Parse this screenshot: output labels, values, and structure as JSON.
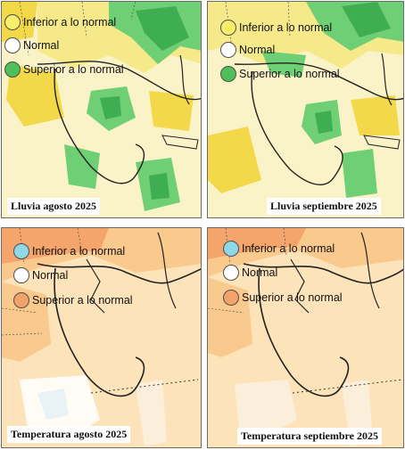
{
  "panels": [
    {
      "id": "lluvia-agosto",
      "caption": "Lluvia agosto 2025",
      "legend": [
        {
          "label": "Inferior a lo normal",
          "color": "#f7ef6a"
        },
        {
          "label": "Normal",
          "color": "#ffffff"
        },
        {
          "label": "Superior a lo normal",
          "color": "#4fbf5a"
        }
      ]
    },
    {
      "id": "lluvia-septiembre",
      "caption": "Lluvia septiembre 2025",
      "legend": [
        {
          "label": "Inferior a lo normal",
          "color": "#f7ef6a"
        },
        {
          "label": "Normal",
          "color": "#ffffff"
        },
        {
          "label": "Superior a lo normal",
          "color": "#4fbf5a"
        }
      ]
    },
    {
      "id": "temperatura-agosto",
      "caption": "Temperatura agosto 2025",
      "legend": [
        {
          "label": "Inferior a lo normal",
          "color": "#8fd8e8"
        },
        {
          "label": "Normal",
          "color": "#ffffff"
        },
        {
          "label": "Superior a lo normal",
          "color": "#f2a36a"
        }
      ]
    },
    {
      "id": "temperatura-septiembre",
      "caption": "Temperatura septiembre 2025",
      "legend": [
        {
          "label": "Inferior a lo normal",
          "color": "#8fd8e8"
        },
        {
          "label": "Normal",
          "color": "#ffffff"
        },
        {
          "label": "Superior a lo normal",
          "color": "#f2a36a"
        }
      ]
    }
  ],
  "colors": {
    "rain_base": "#fbf3c8",
    "rain_dry": "#f3d94a",
    "rain_wet": "#6fcf74",
    "rain_wet_dark": "#3fae52",
    "temp_base": "#fde3b9",
    "temp_warm": "#f9c98e",
    "temp_hot": "#f3a56b",
    "coast": "#222222"
  }
}
